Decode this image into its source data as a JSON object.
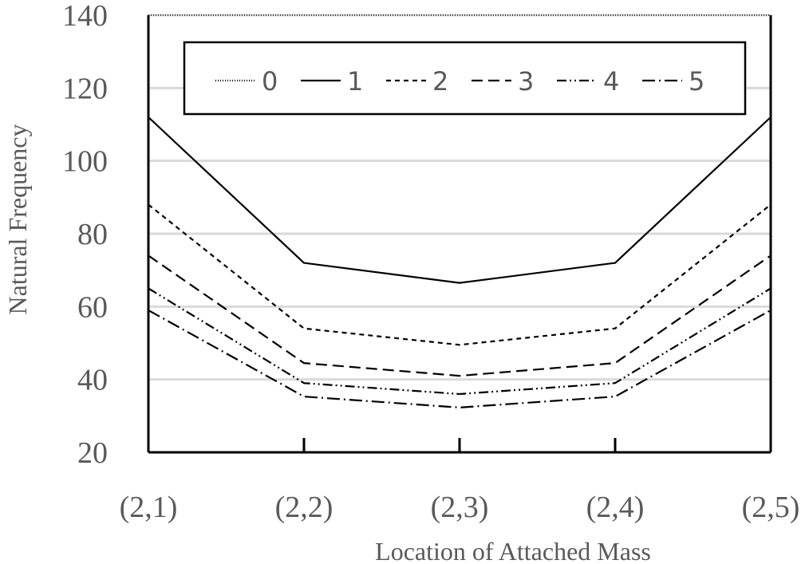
{
  "chart_data": {
    "type": "line",
    "x_label": "Location of Attached Mass",
    "y_label": "Natural Frequency",
    "categories": [
      "(2,1)",
      "(2,2)",
      "(2,3)",
      "(2,4)",
      "(2,5)"
    ],
    "ylim": [
      20,
      140
    ],
    "yticks": [
      20,
      40,
      60,
      80,
      100,
      120,
      140
    ],
    "grid": true,
    "legend": "top",
    "series": [
      {
        "name": "0",
        "color": "#000000",
        "dash": "1 2",
        "values": [
          140,
          140,
          140,
          140,
          140
        ]
      },
      {
        "name": "1",
        "color": "#000000",
        "dash": "none",
        "values": [
          112,
          72,
          66.5,
          72,
          112
        ]
      },
      {
        "name": "2",
        "color": "#000000",
        "dash": "6 5",
        "values": [
          88,
          54,
          49.5,
          54,
          88
        ]
      },
      {
        "name": "3",
        "color": "#000000",
        "dash": "14 7",
        "values": [
          74,
          44.5,
          41,
          44.5,
          74
        ]
      },
      {
        "name": "4",
        "color": "#000000",
        "dash": "12 4 2 4 2 4",
        "values": [
          65,
          39,
          36,
          39,
          65
        ]
      },
      {
        "name": "5",
        "color": "#000000",
        "dash": "16 5 2 5",
        "values": [
          59,
          35.3,
          32.3,
          35.3,
          59
        ]
      }
    ]
  }
}
